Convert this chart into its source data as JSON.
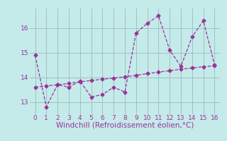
{
  "line1_x": [
    0,
    1,
    2,
    3,
    4,
    5,
    6,
    7,
    8,
    9,
    10,
    11,
    12,
    13,
    14,
    15,
    16
  ],
  "line1_y": [
    14.9,
    12.8,
    13.7,
    13.6,
    13.85,
    13.2,
    13.3,
    13.6,
    13.4,
    15.8,
    16.2,
    16.5,
    15.1,
    14.45,
    15.65,
    16.3,
    14.5
  ],
  "line2_x": [
    0,
    1,
    2,
    3,
    4,
    5,
    6,
    7,
    8,
    9,
    10,
    11,
    12,
    13,
    14,
    15,
    16
  ],
  "line2_y": [
    13.6,
    13.65,
    13.7,
    13.75,
    13.82,
    13.87,
    13.92,
    13.97,
    14.02,
    14.08,
    14.15,
    14.21,
    14.27,
    14.33,
    14.38,
    14.43,
    14.47
  ],
  "line_color": "#993399",
  "bg_color": "#c5eaea",
  "grid_color": "#99bbbb",
  "xlabel": "Windchill (Refroidissement éolien,°C)",
  "xlabel_color": "#993399",
  "xlim": [
    -0.5,
    16.5
  ],
  "ylim": [
    12.5,
    16.8
  ],
  "yticks": [
    13,
    14,
    15,
    16
  ],
  "xticks": [
    0,
    1,
    2,
    3,
    4,
    5,
    6,
    7,
    8,
    9,
    10,
    11,
    12,
    13,
    14,
    15,
    16
  ],
  "tick_fontsize": 6.5,
  "xlabel_fontsize": 7.5,
  "marker_size": 2.5,
  "linewidth": 0.9
}
